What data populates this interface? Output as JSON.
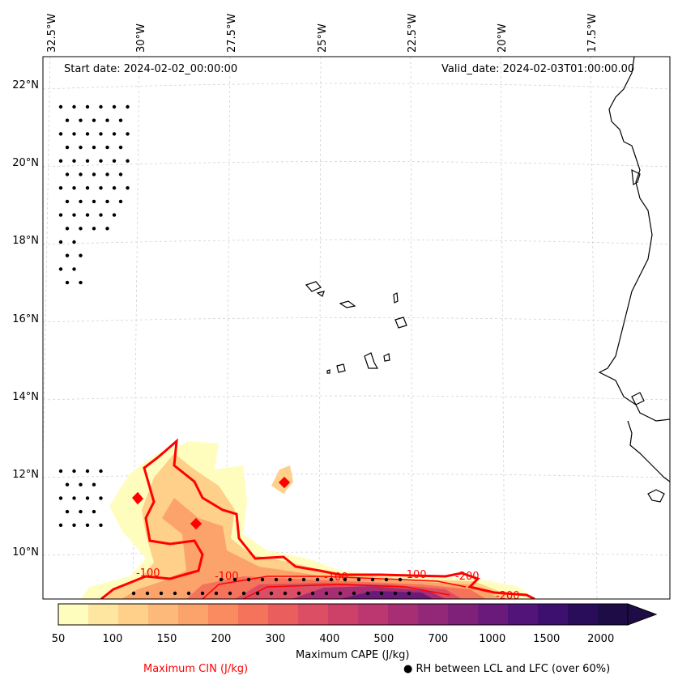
{
  "map": {
    "start_date": "Start date: 2024-02-02_00:00:00",
    "valid_date": "Valid_date: 2024-02-03T01:00:00.00",
    "lon_labels": [
      "32.5°W",
      "30°W",
      "27.5°W",
      "25°W",
      "22.5°W",
      "20°W",
      "17.5°W"
    ],
    "lat_labels": [
      "22°N",
      "20°N",
      "18°N",
      "16°N",
      "14°N",
      "12°N",
      "10°N"
    ],
    "contour_labels": [
      "-100",
      "-100",
      "-100",
      "-200",
      "-100",
      "-200"
    ],
    "coast_color": "#000000",
    "cin_color": "#ff0000",
    "grid_color": "#cccccc"
  },
  "colorbar": {
    "label": "Maximum CAPE (J/kg)",
    "ticks": [
      "50",
      "100",
      "150",
      "200",
      "300",
      "400",
      "500",
      "700",
      "1000",
      "1500",
      "2000"
    ],
    "colors": [
      "#fffdbe",
      "#fee5a0",
      "#fed08a",
      "#fdb97a",
      "#fca36c",
      "#fa8a5f",
      "#f5735a",
      "#ea5f5e",
      "#dc4e63",
      "#cd4169",
      "#bc376f",
      "#a82e74",
      "#932878",
      "#7f2179",
      "#6a1a7a",
      "#53147a",
      "#3d1070",
      "#2a0d5a",
      "#1e0c47"
    ]
  },
  "legend": {
    "cin_label": "Maximum CIN (J/kg)",
    "rh_label": "RH between LCL and LFC (over 60%)",
    "rh_marker": "●"
  }
}
